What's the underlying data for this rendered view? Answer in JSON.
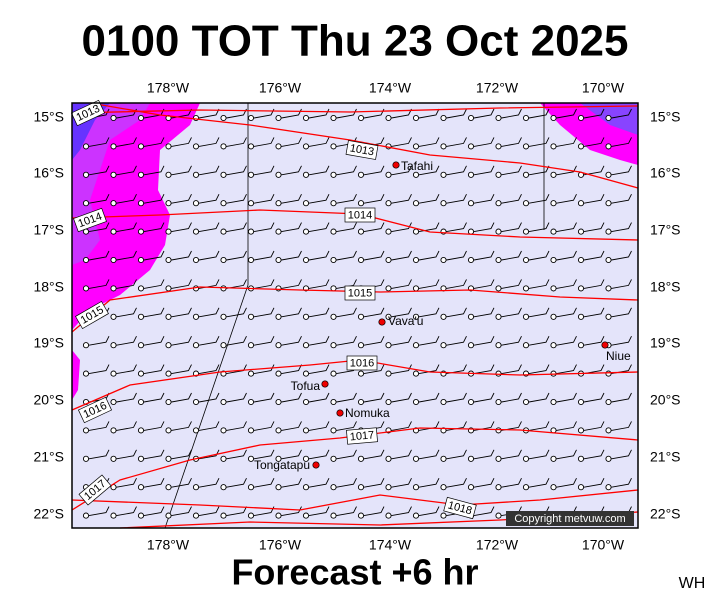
{
  "header": {
    "title": "0100 TOT Thu 23 Oct 2025"
  },
  "map": {
    "top_labels": [
      "178°W",
      "176°W",
      "174°W",
      "172°W",
      "170°W"
    ],
    "bottom_labels": [
      "178°W",
      "176°W",
      "174°W",
      "172°W",
      "170°W"
    ],
    "left_labels": [
      "15°S",
      "16°S",
      "17°S",
      "18°S",
      "19°S",
      "20°S",
      "21°S",
      "22°S"
    ],
    "right_labels": [
      "15°S",
      "16°S",
      "17°S",
      "18°S",
      "19°S",
      "20°S",
      "21°S",
      "22°S"
    ],
    "isobar_labels": [
      "1013",
      "1013",
      "1014",
      "1014",
      "1015",
      "1015",
      "1016",
      "1016",
      "1017",
      "1017",
      "1018"
    ],
    "places": [
      "Tafahi",
      "Vava'u",
      "Niue",
      "Tofua",
      "Nomuka",
      "Tongatapu"
    ],
    "copyright": "Copyright metvuw.com"
  },
  "footer": {
    "forecast": "Forecast +6 hr",
    "initials": "WH"
  }
}
